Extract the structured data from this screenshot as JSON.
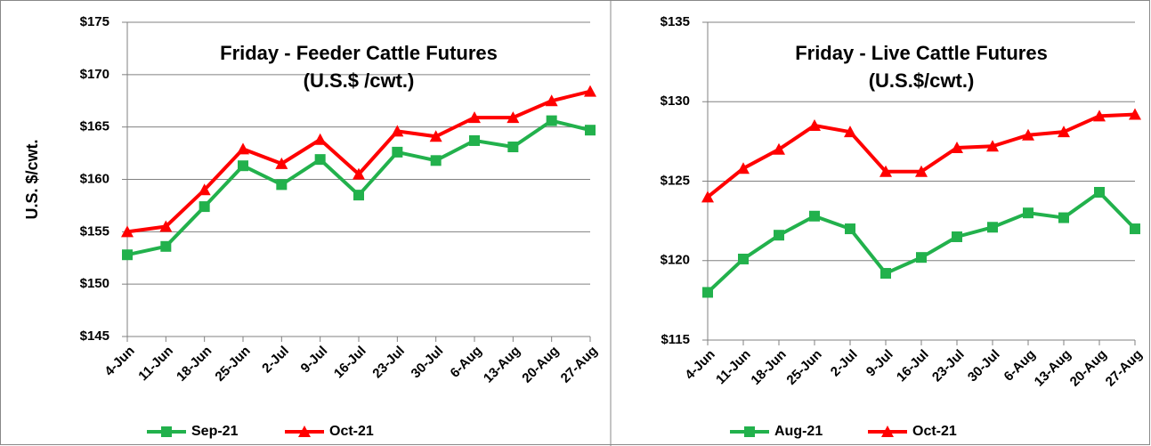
{
  "chart_data": [
    {
      "type": "line",
      "title": "Friday - Feeder Cattle Futures",
      "subtitle": "(U.S.$ /cwt.)",
      "y_label": "U.S. $/cwt.",
      "categories": [
        "4-Jun",
        "11-Jun",
        "18-Jun",
        "25-Jun",
        "2-Jul",
        "9-Jul",
        "16-Jul",
        "23-Jul",
        "30-Jul",
        "6-Aug",
        "13-Aug",
        "20-Aug",
        "27-Aug"
      ],
      "series": [
        {
          "name": "Sep-21",
          "color": "#22b14c",
          "marker": "square",
          "values": [
            152.8,
            153.6,
            157.4,
            161.3,
            159.5,
            161.9,
            158.5,
            162.6,
            161.8,
            163.7,
            163.1,
            165.6,
            164.7
          ]
        },
        {
          "name": "Oct-21",
          "color": "#ff0000",
          "marker": "triangle",
          "values": [
            155.0,
            155.5,
            159.0,
            162.9,
            161.5,
            163.8,
            160.5,
            164.6,
            164.1,
            165.9,
            165.9,
            167.5,
            168.4
          ]
        }
      ],
      "ylim": [
        145,
        175
      ],
      "yticks": [
        {
          "value": 145,
          "label": "$145"
        },
        {
          "value": 150,
          "label": "$150"
        },
        {
          "value": 155,
          "label": "$155"
        },
        {
          "value": 160,
          "label": "$160"
        },
        {
          "value": 165,
          "label": "$165"
        },
        {
          "value": 170,
          "label": "$170"
        },
        {
          "value": 175,
          "label": "$175"
        }
      ],
      "grid": true,
      "legend": "bottom"
    },
    {
      "type": "line",
      "title": "Friday - Live Cattle Futures",
      "subtitle": "(U.S.$/cwt.)",
      "categories": [
        "4-Jun",
        "11-Jun",
        "18-Jun",
        "25-Jun",
        "2-Jul",
        "9-Jul",
        "16-Jul",
        "23-Jul",
        "30-Jul",
        "6-Aug",
        "13-Aug",
        "20-Aug",
        "27-Aug"
      ],
      "series": [
        {
          "name": "Aug-21",
          "color": "#22b14c",
          "marker": "square",
          "values": [
            118.0,
            120.1,
            121.6,
            122.8,
            122.0,
            119.2,
            120.2,
            121.5,
            122.1,
            123.0,
            122.7,
            124.3,
            122.0
          ]
        },
        {
          "name": "Oct-21",
          "color": "#ff0000",
          "marker": "triangle",
          "values": [
            124.0,
            125.8,
            127.0,
            128.5,
            128.1,
            125.6,
            125.6,
            127.1,
            127.2,
            127.9,
            128.1,
            129.1,
            129.2
          ]
        }
      ],
      "ylim": [
        115,
        135
      ],
      "yticks": [
        {
          "value": 115,
          "label": "$115"
        },
        {
          "value": 120,
          "label": "$120"
        },
        {
          "value": 125,
          "label": "$125"
        },
        {
          "value": 130,
          "label": "$130"
        },
        {
          "value": 135,
          "label": "$135"
        }
      ],
      "grid": true,
      "legend": "bottom"
    }
  ]
}
